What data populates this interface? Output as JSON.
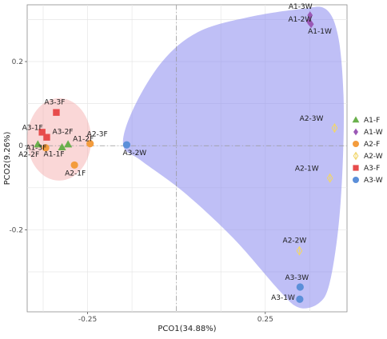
{
  "chart_data": {
    "type": "scatter",
    "xlabel": "PCO1(34.88%)",
    "ylabel": "PCO2(9.26%)",
    "xlim": [
      -0.42,
      0.48
    ],
    "ylim": [
      -0.395,
      0.335
    ],
    "x_ticks": [
      {
        "value": -0.25,
        "label": "-0.25"
      },
      {
        "value": 0.25,
        "label": "0.25"
      }
    ],
    "y_ticks": [
      {
        "value": 0.2,
        "label": "0.2"
      },
      {
        "value": 0,
        "label": "0"
      },
      {
        "value": -0.2,
        "label": "-0.2"
      }
    ],
    "legend_position": "right",
    "ellipse_color": "#f4a6a6",
    "hull_color": "#8b8bef",
    "series": [
      {
        "name": "A1-F",
        "marker": "triangle",
        "color": "#6ab04c",
        "points": [
          {
            "label": "A1-3F",
            "x": -0.39,
            "y": 0.003
          },
          {
            "label": "A1-2F",
            "x": -0.305,
            "y": 0.003
          },
          {
            "label": "A1-1F",
            "x": -0.322,
            "y": -0.004
          }
        ]
      },
      {
        "name": "A1-W",
        "marker": "diamond",
        "color": "#9b59b6",
        "points": [
          {
            "label": "A1-3W",
            "x": 0.376,
            "y": 0.31
          },
          {
            "label": "A1-2W",
            "x": 0.373,
            "y": 0.295
          },
          {
            "label": "A1-1W",
            "x": 0.379,
            "y": 0.289
          }
        ]
      },
      {
        "name": "A2-F",
        "marker": "circle",
        "color": "#f39c3d",
        "points": [
          {
            "label": "A2-3F",
            "x": -0.243,
            "y": 0.005
          },
          {
            "label": "A2-2F",
            "x": -0.368,
            "y": -0.005
          },
          {
            "label": "A2-1F",
            "x": -0.287,
            "y": -0.046
          }
        ]
      },
      {
        "name": "A2-W",
        "marker": "diamond-open",
        "color": "#f1d66b",
        "points": [
          {
            "label": "A2-3W",
            "x": 0.445,
            "y": 0.042
          },
          {
            "label": "A2-1W",
            "x": 0.432,
            "y": -0.077
          },
          {
            "label": "A2-2W",
            "x": 0.346,
            "y": -0.25
          }
        ]
      },
      {
        "name": "A3-F",
        "marker": "square",
        "color": "#e74c4c",
        "points": [
          {
            "label": "A3-3F",
            "x": -0.338,
            "y": 0.079
          },
          {
            "label": "A3-1F",
            "x": -0.378,
            "y": 0.032
          },
          {
            "label": "A3-2F",
            "x": -0.365,
            "y": 0.02
          }
        ]
      },
      {
        "name": "A3-W",
        "marker": "circle",
        "color": "#5b8fd9",
        "points": [
          {
            "label": "A3-2W",
            "x": -0.14,
            "y": 0.002
          },
          {
            "label": "A3-3W",
            "x": 0.348,
            "y": -0.336
          },
          {
            "label": "A3-1W",
            "x": 0.347,
            "y": -0.365
          }
        ]
      }
    ]
  }
}
